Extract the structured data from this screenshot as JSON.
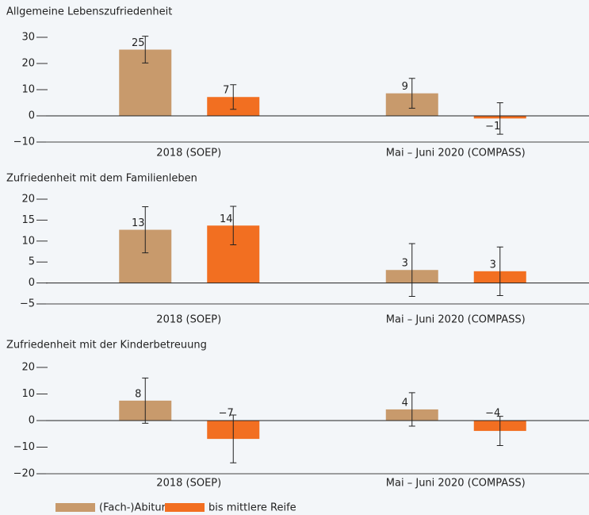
{
  "chart_data": [
    {
      "type": "bar",
      "title": "Allgemeine Lebenszufriedenheit",
      "categories": [
        "2018 (SOEP)",
        "Mai – Juni 2020 (COMPASS)"
      ],
      "series": [
        {
          "name": "(Fach-)Abitur",
          "color": "#c89a6c",
          "values": [
            25.3,
            8.6
          ],
          "errors": [
            5.1,
            5.7
          ],
          "value_labels": [
            "25",
            "9"
          ]
        },
        {
          "name": "bis mittlere Reife",
          "color": "#f26f21",
          "values": [
            7.2,
            -1.0
          ],
          "errors": [
            4.7,
            6.0
          ],
          "value_labels": [
            "7",
            "−1"
          ]
        }
      ],
      "ylim": [
        -10,
        30
      ],
      "yticks": [
        {
          "value": -10,
          "label": "−10"
        },
        0,
        10,
        20,
        30
      ]
    },
    {
      "type": "bar",
      "title": "Zufriedenheit mit dem Familienleben",
      "categories": [
        "2018 (SOEP)",
        "Mai – Juni 2020 (COMPASS)"
      ],
      "series": [
        {
          "color": "#c89a6c",
          "values": [
            12.7,
            3.1
          ],
          "errors": [
            5.5,
            6.3
          ],
          "value_labels": [
            "13",
            "3"
          ]
        },
        {
          "color": "#f26f21",
          "values": [
            13.7,
            2.8
          ],
          "errors": [
            4.6,
            5.8
          ],
          "value_labels": [
            "14",
            "3"
          ]
        }
      ],
      "ylim": [
        -5,
        20
      ],
      "yticks": [
        {
          "value": -5,
          "label": "−5"
        },
        0,
        5,
        10,
        15,
        20
      ]
    },
    {
      "type": "bar",
      "title": "Zufriedenheit mit der Kinderbetreuung",
      "categories": [
        "2018 (SOEP)",
        "Mai – Juni 2020 (COMPASS)"
      ],
      "series": [
        {
          "color": "#c89a6c",
          "values": [
            7.5,
            4.2
          ],
          "errors": [
            8.5,
            6.3
          ],
          "value_labels": [
            "8",
            "4"
          ]
        },
        {
          "color": "#f26f21",
          "values": [
            -6.9,
            -3.9
          ],
          "errors": [
            9.0,
            5.5
          ],
          "value_labels": [
            "−7",
            "−4"
          ]
        }
      ],
      "ylim": [
        -20,
        20
      ],
      "yticks": [
        {
          "value": -20,
          "label": "−20"
        },
        {
          "value": -10,
          "label": "−10"
        },
        0,
        10,
        20
      ]
    }
  ]
}
